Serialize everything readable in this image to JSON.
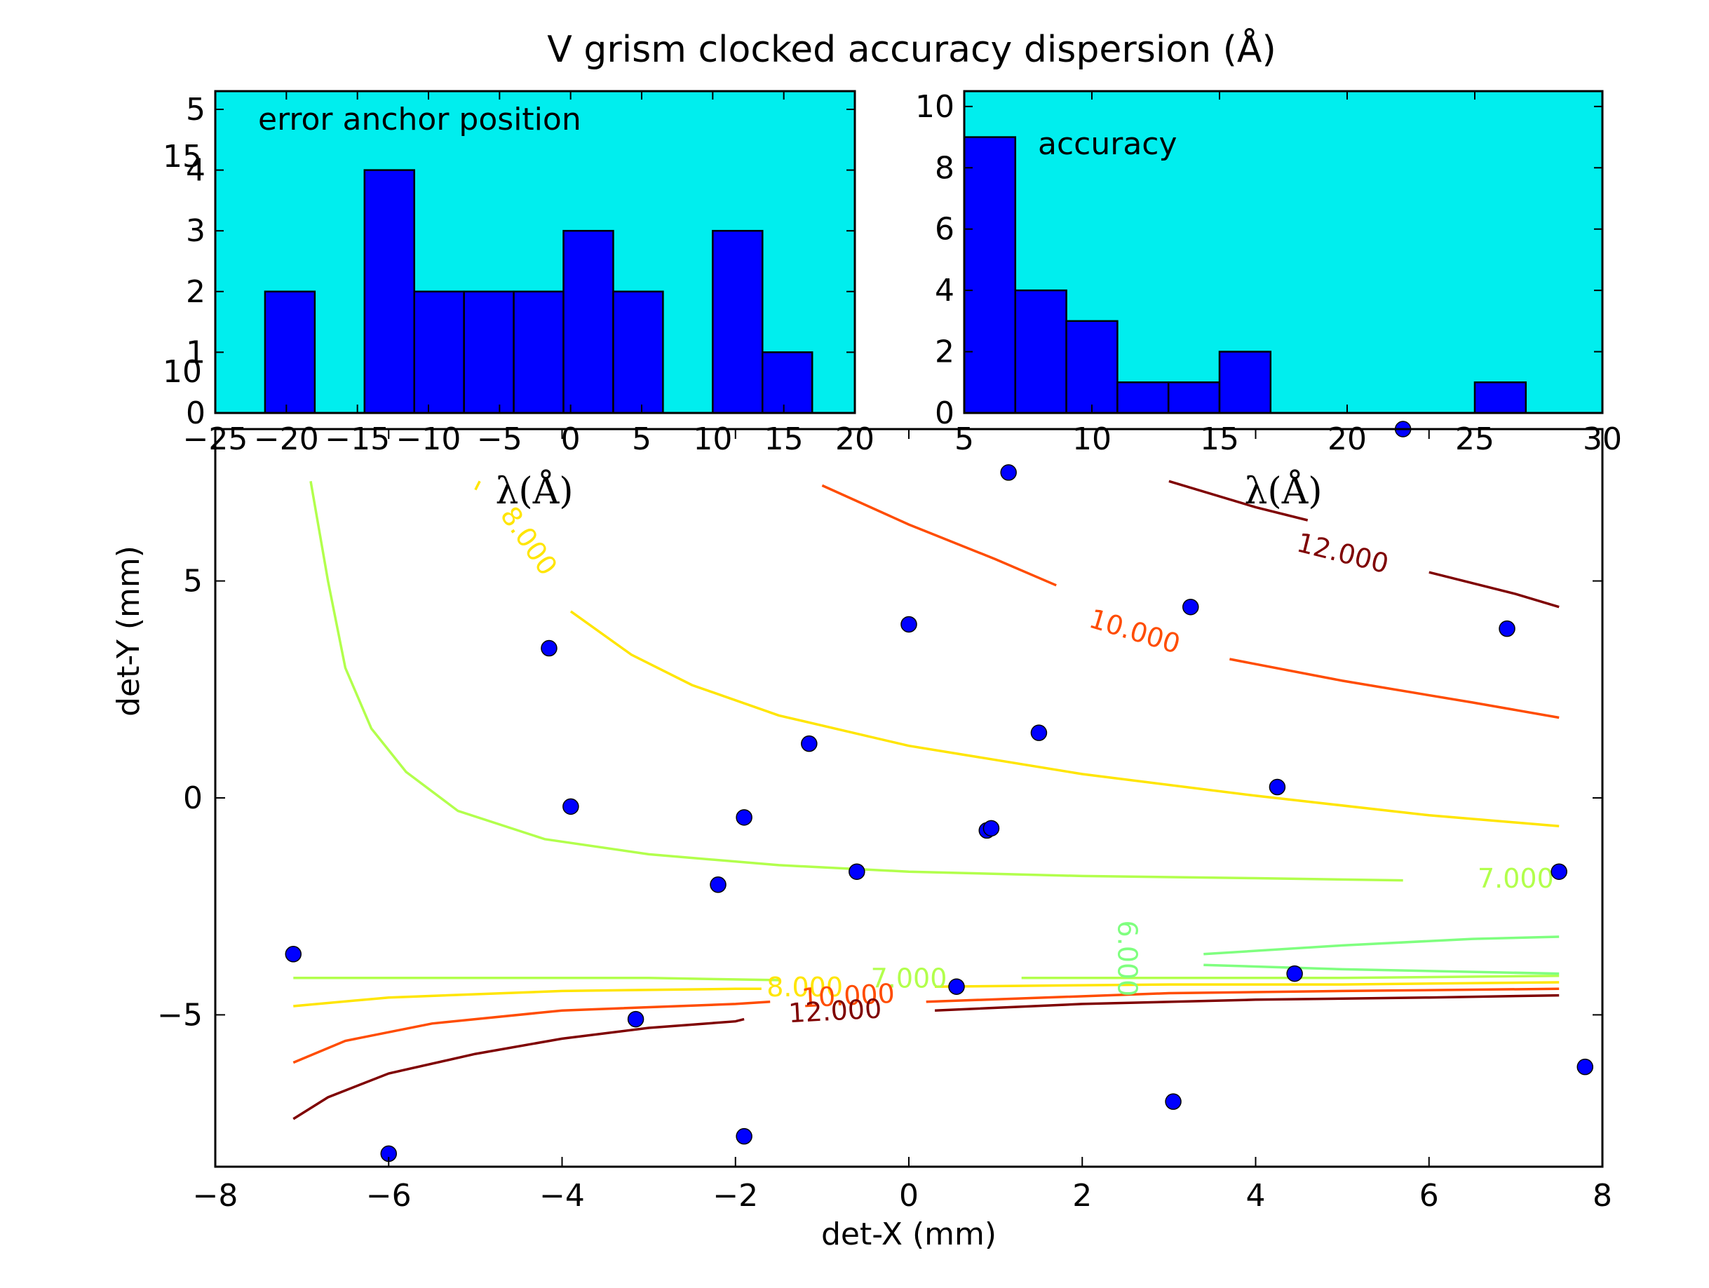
{
  "chart_data": [
    {
      "type": "scatter",
      "title": "V grism clocked accuracy dispersion (Å)",
      "xlabel": "det-X (mm)",
      "ylabel": "det-Y (mm)",
      "xlim": [
        -8,
        8
      ],
      "ylim": [
        -8.5,
        8.5
      ],
      "xticks": [
        "−8",
        "−6",
        "−4",
        "−2",
        "0",
        "2",
        "4",
        "6",
        "8"
      ],
      "yticks": [
        "−5",
        "0",
        "5"
      ],
      "overlapping_ytick_labels": [
        "15",
        "10"
      ],
      "points": [
        [
          -7.1,
          -3.6
        ],
        [
          -6.0,
          -8.2
        ],
        [
          -4.15,
          3.45
        ],
        [
          -3.9,
          -0.2
        ],
        [
          -3.15,
          -5.1
        ],
        [
          -2.2,
          -2.0
        ],
        [
          -1.9,
          -0.45
        ],
        [
          -1.9,
          -7.8
        ],
        [
          -1.15,
          1.25
        ],
        [
          -0.6,
          -1.7
        ],
        [
          0.0,
          4.0
        ],
        [
          0.55,
          -4.35
        ],
        [
          0.9,
          -0.75
        ],
        [
          0.95,
          -0.7
        ],
        [
          1.15,
          7.5
        ],
        [
          1.5,
          1.5
        ],
        [
          3.05,
          -7.0
        ],
        [
          3.25,
          4.4
        ],
        [
          4.25,
          0.25
        ],
        [
          4.45,
          -4.05
        ],
        [
          6.9,
          3.9
        ],
        [
          7.5,
          -1.7
        ],
        [
          7.8,
          -6.2
        ],
        [
          5.7,
          8.5
        ]
      ],
      "marker_color": "#0000ff",
      "contours": [
        {
          "label": "6.000",
          "color": "#7fff7f"
        },
        {
          "label": "7.000",
          "color": "#b2ff4c"
        },
        {
          "label": "8.000",
          "color": "#ffe500"
        },
        {
          "label": "10.000",
          "color": "#ff4c00"
        },
        {
          "label": "12.000",
          "color": "#7f0000"
        }
      ]
    },
    {
      "type": "bar",
      "title": "error anchor position",
      "xlabel": "λ(Å)",
      "xlim": [
        -25,
        20
      ],
      "ylim": [
        0,
        5.3
      ],
      "xticks": [
        "−25",
        "−20",
        "−15",
        "−10",
        "−5",
        "0",
        "5",
        "10",
        "15",
        "20"
      ],
      "yticks": [
        "0",
        "1",
        "2",
        "3",
        "4",
        "5"
      ],
      "bin_edges": [
        -21.5,
        -18.0,
        -14.5,
        -11.0,
        -7.5,
        -4.0,
        -0.5,
        3.0,
        6.5,
        10.0,
        13.5,
        17.0
      ],
      "values": [
        2,
        0,
        4,
        2,
        2,
        2,
        3,
        2,
        0,
        3,
        1
      ],
      "background": "#00eeee",
      "bar_color": "#0000ff"
    },
    {
      "type": "bar",
      "title": "accuracy",
      "xlabel": "λ(Å)",
      "xlim": [
        5,
        30
      ],
      "ylim": [
        0,
        10.5
      ],
      "xticks": [
        "5",
        "10",
        "15",
        "20",
        "25",
        "30"
      ],
      "yticks": [
        "0",
        "2",
        "4",
        "6",
        "8",
        "10"
      ],
      "bin_edges": [
        5,
        7,
        9,
        11,
        13,
        15,
        17,
        19,
        21,
        23,
        25,
        27
      ],
      "values": [
        9,
        4,
        3,
        1,
        1,
        2,
        0,
        0,
        0,
        0,
        1
      ],
      "background": "#00eeee",
      "bar_color": "#0000ff"
    }
  ]
}
